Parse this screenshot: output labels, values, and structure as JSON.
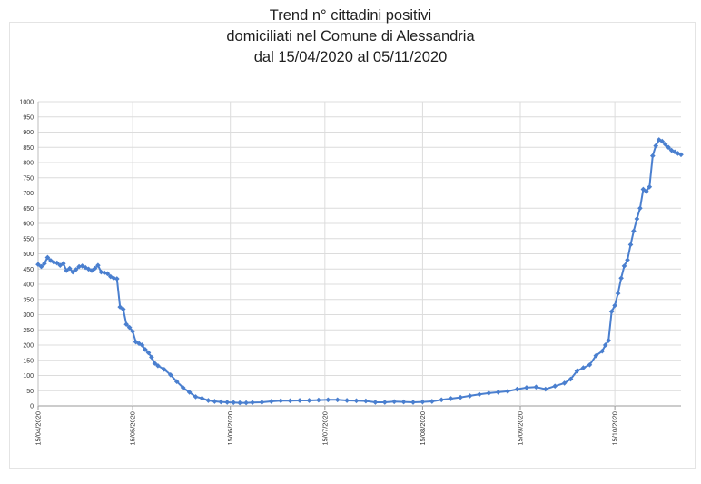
{
  "chart_data": {
    "type": "line",
    "title": [
      "Trend n° cittadini positivi",
      "domiciliati nel Comune di Alessandria",
      "dal 15/04/2020 al 05/11/2020"
    ],
    "xlabel": "",
    "ylabel": "",
    "ylim": [
      0,
      1000
    ],
    "yticks": [
      0,
      50,
      100,
      150,
      200,
      250,
      300,
      350,
      400,
      450,
      500,
      550,
      600,
      650,
      700,
      750,
      800,
      850,
      900,
      950,
      1000
    ],
    "xlim": [
      "2020-04-15",
      "2020-11-05"
    ],
    "xticks": [
      "15/04/2020",
      "15/05/2020",
      "15/06/2020",
      "15/07/2020",
      "15/08/2020",
      "15/09/2020",
      "15/10/2020"
    ],
    "grid": true,
    "legend": "none",
    "color": "#4a7fcf",
    "series": [
      {
        "x": [
          "2020-04-15",
          "2020-04-16",
          "2020-04-17",
          "2020-04-18",
          "2020-04-19",
          "2020-04-20",
          "2020-04-21",
          "2020-04-22",
          "2020-04-23",
          "2020-04-24",
          "2020-04-25",
          "2020-04-26",
          "2020-04-27",
          "2020-04-28",
          "2020-04-29",
          "2020-04-30",
          "2020-05-01",
          "2020-05-02",
          "2020-05-03",
          "2020-05-04",
          "2020-05-05",
          "2020-05-06",
          "2020-05-07",
          "2020-05-08",
          "2020-05-09",
          "2020-05-10",
          "2020-05-11",
          "2020-05-12",
          "2020-05-13",
          "2020-05-14",
          "2020-05-15",
          "2020-05-16",
          "2020-05-17",
          "2020-05-18",
          "2020-05-19",
          "2020-05-20",
          "2020-05-21",
          "2020-05-22",
          "2020-05-23",
          "2020-05-25",
          "2020-05-27",
          "2020-05-29",
          "2020-05-31",
          "2020-06-02",
          "2020-06-04",
          "2020-06-06",
          "2020-06-08",
          "2020-06-10",
          "2020-06-12",
          "2020-06-14",
          "2020-06-16",
          "2020-06-18",
          "2020-06-20",
          "2020-06-22",
          "2020-06-25",
          "2020-06-28",
          "2020-07-01",
          "2020-07-04",
          "2020-07-07",
          "2020-07-10",
          "2020-07-13",
          "2020-07-16",
          "2020-07-19",
          "2020-07-22",
          "2020-07-25",
          "2020-07-28",
          "2020-07-31",
          "2020-08-03",
          "2020-08-06",
          "2020-08-09",
          "2020-08-12",
          "2020-08-15",
          "2020-08-18",
          "2020-08-21",
          "2020-08-24",
          "2020-08-27",
          "2020-08-30",
          "2020-09-02",
          "2020-09-05",
          "2020-09-08",
          "2020-09-11",
          "2020-09-14",
          "2020-09-17",
          "2020-09-20",
          "2020-09-23",
          "2020-09-26",
          "2020-09-29",
          "2020-10-01",
          "2020-10-03",
          "2020-10-05",
          "2020-10-07",
          "2020-10-09",
          "2020-10-11",
          "2020-10-12",
          "2020-10-13",
          "2020-10-14",
          "2020-10-15",
          "2020-10-16",
          "2020-10-17",
          "2020-10-18",
          "2020-10-19",
          "2020-10-20",
          "2020-10-21",
          "2020-10-22",
          "2020-10-23",
          "2020-10-24",
          "2020-10-25",
          "2020-10-26",
          "2020-10-27",
          "2020-10-28",
          "2020-10-29",
          "2020-10-30",
          "2020-10-31",
          "2020-11-01",
          "2020-11-02",
          "2020-11-03",
          "2020-11-04",
          "2020-11-05"
        ],
        "y": [
          465,
          458,
          468,
          488,
          478,
          472,
          470,
          462,
          468,
          445,
          452,
          440,
          448,
          458,
          460,
          455,
          450,
          445,
          452,
          462,
          440,
          438,
          435,
          425,
          420,
          418,
          325,
          318,
          268,
          258,
          245,
          210,
          205,
          200,
          185,
          175,
          160,
          140,
          132,
          120,
          102,
          80,
          60,
          45,
          30,
          25,
          18,
          15,
          13,
          12,
          11,
          10,
          10,
          11,
          12,
          15,
          17,
          17,
          18,
          18,
          19,
          20,
          20,
          18,
          17,
          16,
          12,
          12,
          14,
          13,
          12,
          13,
          15,
          20,
          24,
          28,
          33,
          38,
          42,
          45,
          48,
          55,
          60,
          62,
          55,
          65,
          75,
          88,
          115,
          125,
          135,
          165,
          180,
          200,
          215,
          310,
          330,
          370,
          420,
          460,
          480,
          530,
          575,
          615,
          650,
          712,
          705,
          720,
          822,
          855,
          875,
          870,
          860,
          850,
          840,
          835,
          830,
          826
        ]
      }
    ]
  }
}
